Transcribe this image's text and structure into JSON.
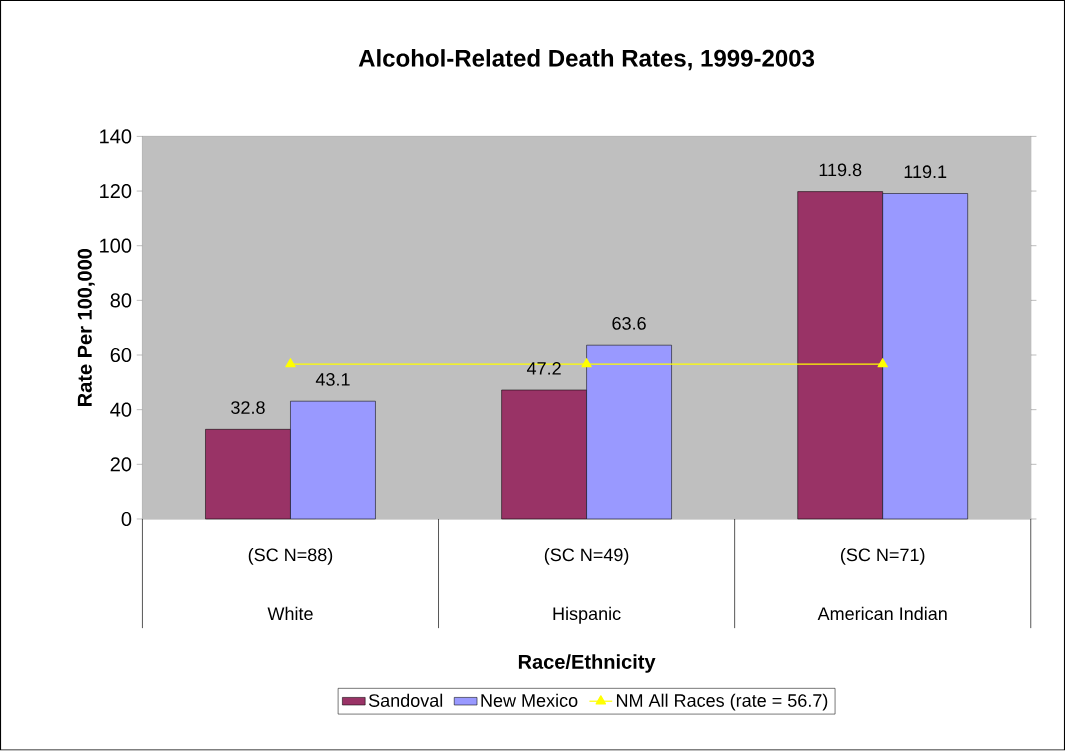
{
  "chart_data": {
    "type": "bar",
    "title": "Alcohol-Related Death Rates, 1999-2003",
    "xlabel": "Race/Ethnicity",
    "ylabel": "Rate Per 100,000",
    "categories": [
      "White",
      "Hispanic",
      "American Indian"
    ],
    "annotations": [
      "(SC N=88)",
      "(SC N=49)",
      "(SC N=71)"
    ],
    "series": [
      {
        "name": "Sandoval",
        "color": "#993366",
        "values": [
          32.8,
          47.2,
          119.8
        ],
        "value_labels": [
          "32.8",
          "47.2",
          "119.8"
        ]
      },
      {
        "name": "New Mexico",
        "color": "#9999ff",
        "values": [
          43.1,
          63.6,
          119.1
        ],
        "value_labels": [
          "43.1",
          "63.6",
          "119.1"
        ]
      },
      {
        "name": "NM All Races (rate = 56.7)",
        "type": "line",
        "color": "#ffff00",
        "marker": "triangle",
        "values": [
          56.7,
          56.7,
          56.7
        ]
      }
    ],
    "ylim": [
      0,
      140
    ],
    "yticks": [
      0,
      20,
      40,
      60,
      80,
      100,
      120,
      140
    ],
    "grid": false,
    "legend": "bottom"
  }
}
